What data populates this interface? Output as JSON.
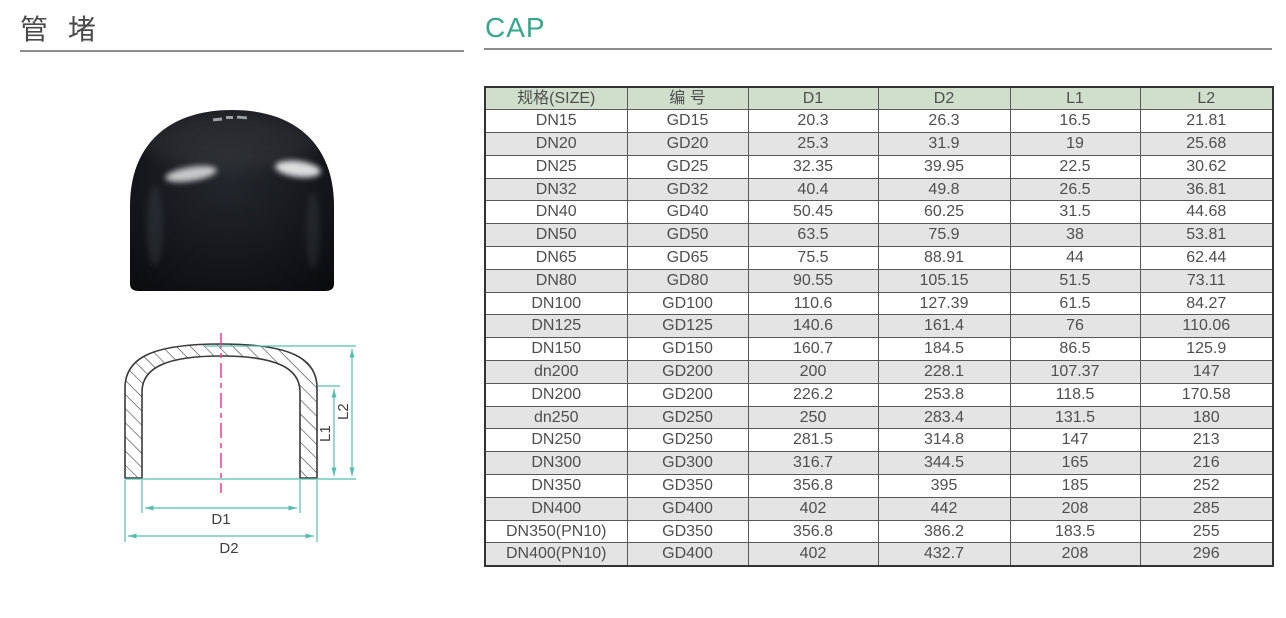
{
  "page": {
    "title_cn": "管 堵",
    "title_en": "CAP"
  },
  "colors": {
    "accent_teal": "#36a78c",
    "dimension_teal": "#56bfae",
    "centerline_pink": "#ee3f90",
    "table_header_bg": "#cfdfcc",
    "table_row_alt_bg": "#e4e4e4",
    "table_border": "#585858",
    "text_primary": "#4a4a4a",
    "diagram_outline": "#3a3a3a"
  },
  "spec_table": {
    "columns": [
      "规格(SIZE)",
      "编 号",
      "D1",
      "D2",
      "L1",
      "L2"
    ],
    "rows": [
      [
        "DN15",
        "GD15",
        "20.3",
        "26.3",
        "16.5",
        "21.81"
      ],
      [
        "DN20",
        "GD20",
        "25.3",
        "31.9",
        "19",
        "25.68"
      ],
      [
        "DN25",
        "GD25",
        "32.35",
        "39.95",
        "22.5",
        "30.62"
      ],
      [
        "DN32",
        "GD32",
        "40.4",
        "49.8",
        "26.5",
        "36.81"
      ],
      [
        "DN40",
        "GD40",
        "50.45",
        "60.25",
        "31.5",
        "44.68"
      ],
      [
        "DN50",
        "GD50",
        "63.5",
        "75.9",
        "38",
        "53.81"
      ],
      [
        "DN65",
        "GD65",
        "75.5",
        "88.91",
        "44",
        "62.44"
      ],
      [
        "DN80",
        "GD80",
        "90.55",
        "105.15",
        "51.5",
        "73.11"
      ],
      [
        "DN100",
        "GD100",
        "110.6",
        "127.39",
        "61.5",
        "84.27"
      ],
      [
        "DN125",
        "GD125",
        "140.6",
        "161.4",
        "76",
        "110.06"
      ],
      [
        "DN150",
        "GD150",
        "160.7",
        "184.5",
        "86.5",
        "125.9"
      ],
      [
        "dn200",
        "GD200",
        "200",
        "228.1",
        "107.37",
        "147"
      ],
      [
        "DN200",
        "GD200",
        "226.2",
        "253.8",
        "118.5",
        "170.58"
      ],
      [
        "dn250",
        "GD250",
        "250",
        "283.4",
        "131.5",
        "180"
      ],
      [
        "DN250",
        "GD250",
        "281.5",
        "314.8",
        "147",
        "213"
      ],
      [
        "DN300",
        "GD300",
        "316.7",
        "344.5",
        "165",
        "216"
      ],
      [
        "DN350",
        "GD350",
        "356.8",
        "395",
        "185",
        "252"
      ],
      [
        "DN400",
        "GD400",
        "402",
        "442",
        "208",
        "285"
      ],
      [
        "DN350(PN10)",
        "GD350",
        "356.8",
        "386.2",
        "183.5",
        "255"
      ],
      [
        "DN400(PN10)",
        "GD400",
        "402",
        "432.7",
        "208",
        "296"
      ]
    ]
  },
  "diagram": {
    "labels": {
      "d1": "D1",
      "d2": "D2",
      "l1": "L1",
      "l2": "L2"
    }
  }
}
